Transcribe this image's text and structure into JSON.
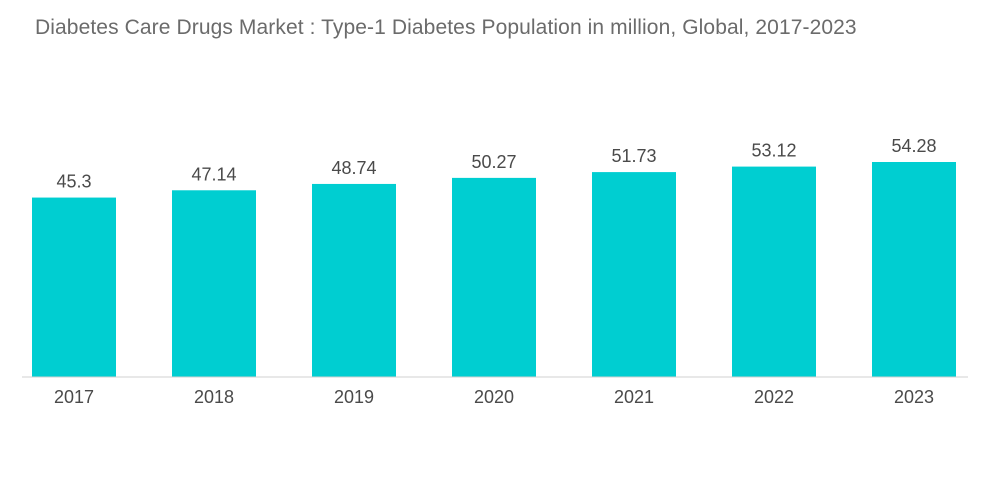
{
  "chart_data": {
    "type": "bar",
    "title": "Diabetes Care Drugs Market : Type-1 Diabetes Population in million, Global, 2017-2023",
    "xlabel": "",
    "ylabel": "",
    "categories": [
      "2017",
      "2018",
      "2019",
      "2020",
      "2021",
      "2022",
      "2023"
    ],
    "values": [
      45.3,
      47.14,
      48.74,
      50.27,
      51.73,
      53.12,
      54.28
    ],
    "value_labels": [
      "45.3",
      "47.14",
      "48.74",
      "50.27",
      "51.73",
      "53.12",
      "54.28"
    ],
    "ylim": [
      0,
      54.28
    ],
    "grid": false,
    "legend": "none",
    "colors": {
      "bar": "#00CED1",
      "axis": "#d0d0d0",
      "text": "#4a4a4a",
      "title": "#6b6b6b"
    }
  }
}
